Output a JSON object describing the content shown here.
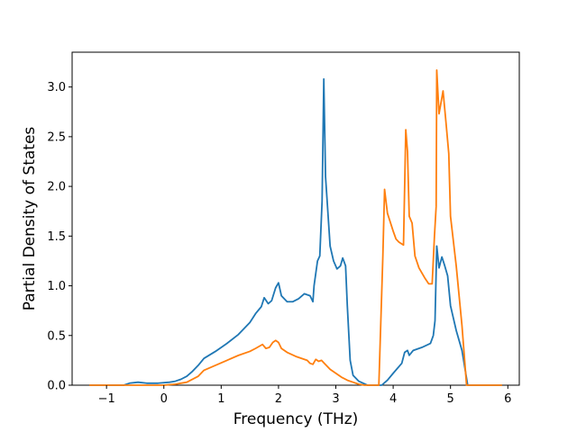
{
  "chart_data": {
    "type": "line",
    "xlabel": "Frequency (THz)",
    "ylabel": "Partial Density of States",
    "xlim": [
      -1.6,
      6.2
    ],
    "ylim": [
      0.0,
      3.35
    ],
    "xticks": [
      -1,
      0,
      1,
      2,
      3,
      4,
      5,
      6
    ],
    "xtick_labels": [
      "−1",
      "0",
      "1",
      "2",
      "3",
      "4",
      "5",
      "6"
    ],
    "yticks": [
      0.0,
      0.5,
      1.0,
      1.5,
      2.0,
      2.5,
      3.0
    ],
    "ytick_labels": [
      "0.0",
      "0.5",
      "1.0",
      "1.5",
      "2.0",
      "2.5",
      "3.0"
    ],
    "grid": false,
    "legend": "none",
    "series": [
      {
        "color": "#1f77b4",
        "points": [
          [
            -1.3,
            0.0
          ],
          [
            -0.7,
            0.0
          ],
          [
            -0.6,
            0.02
          ],
          [
            -0.45,
            0.03
          ],
          [
            -0.3,
            0.02
          ],
          [
            -0.1,
            0.02
          ],
          [
            0.1,
            0.03
          ],
          [
            0.2,
            0.04
          ],
          [
            0.3,
            0.06
          ],
          [
            0.4,
            0.09
          ],
          [
            0.5,
            0.14
          ],
          [
            0.6,
            0.2
          ],
          [
            0.7,
            0.27
          ],
          [
            0.9,
            0.34
          ],
          [
            1.1,
            0.42
          ],
          [
            1.3,
            0.51
          ],
          [
            1.5,
            0.63
          ],
          [
            1.6,
            0.72
          ],
          [
            1.7,
            0.79
          ],
          [
            1.75,
            0.88
          ],
          [
            1.82,
            0.82
          ],
          [
            1.88,
            0.85
          ],
          [
            1.95,
            0.98
          ],
          [
            2.0,
            1.03
          ],
          [
            2.05,
            0.9
          ],
          [
            2.15,
            0.84
          ],
          [
            2.25,
            0.84
          ],
          [
            2.35,
            0.87
          ],
          [
            2.45,
            0.92
          ],
          [
            2.55,
            0.9
          ],
          [
            2.6,
            0.84
          ],
          [
            2.62,
            1.0
          ],
          [
            2.68,
            1.25
          ],
          [
            2.72,
            1.3
          ],
          [
            2.76,
            1.85
          ],
          [
            2.79,
            3.08
          ],
          [
            2.82,
            2.1
          ],
          [
            2.9,
            1.4
          ],
          [
            2.96,
            1.25
          ],
          [
            3.02,
            1.17
          ],
          [
            3.08,
            1.2
          ],
          [
            3.12,
            1.28
          ],
          [
            3.17,
            1.2
          ],
          [
            3.2,
            0.8
          ],
          [
            3.25,
            0.25
          ],
          [
            3.3,
            0.1
          ],
          [
            3.4,
            0.04
          ],
          [
            3.55,
            0.0
          ],
          [
            3.8,
            0.0
          ],
          [
            3.9,
            0.05
          ],
          [
            4.0,
            0.12
          ],
          [
            4.15,
            0.22
          ],
          [
            4.2,
            0.33
          ],
          [
            4.25,
            0.35
          ],
          [
            4.28,
            0.3
          ],
          [
            4.35,
            0.35
          ],
          [
            4.5,
            0.38
          ],
          [
            4.65,
            0.42
          ],
          [
            4.7,
            0.5
          ],
          [
            4.73,
            0.65
          ],
          [
            4.76,
            1.4
          ],
          [
            4.8,
            1.18
          ],
          [
            4.85,
            1.29
          ],
          [
            4.9,
            1.2
          ],
          [
            4.95,
            1.1
          ],
          [
            5.0,
            0.8
          ],
          [
            5.1,
            0.55
          ],
          [
            5.2,
            0.35
          ],
          [
            5.3,
            0.0
          ],
          [
            5.9,
            0.0
          ]
        ]
      },
      {
        "color": "#ff7f0e",
        "points": [
          [
            -1.3,
            0.0
          ],
          [
            0.0,
            0.0
          ],
          [
            0.2,
            0.01
          ],
          [
            0.4,
            0.03
          ],
          [
            0.6,
            0.09
          ],
          [
            0.7,
            0.15
          ],
          [
            0.9,
            0.2
          ],
          [
            1.1,
            0.25
          ],
          [
            1.3,
            0.3
          ],
          [
            1.5,
            0.34
          ],
          [
            1.6,
            0.37
          ],
          [
            1.72,
            0.41
          ],
          [
            1.78,
            0.37
          ],
          [
            1.84,
            0.38
          ],
          [
            1.9,
            0.43
          ],
          [
            1.95,
            0.45
          ],
          [
            2.0,
            0.43
          ],
          [
            2.05,
            0.37
          ],
          [
            2.15,
            0.33
          ],
          [
            2.3,
            0.29
          ],
          [
            2.5,
            0.25
          ],
          [
            2.55,
            0.22
          ],
          [
            2.6,
            0.21
          ],
          [
            2.65,
            0.26
          ],
          [
            2.7,
            0.24
          ],
          [
            2.75,
            0.25
          ],
          [
            2.8,
            0.22
          ],
          [
            2.9,
            0.16
          ],
          [
            3.0,
            0.12
          ],
          [
            3.1,
            0.08
          ],
          [
            3.2,
            0.05
          ],
          [
            3.3,
            0.03
          ],
          [
            3.4,
            0.01
          ],
          [
            3.5,
            0.0
          ],
          [
            3.75,
            0.0
          ],
          [
            3.82,
            1.3
          ],
          [
            3.85,
            1.97
          ],
          [
            3.9,
            1.73
          ],
          [
            4.0,
            1.55
          ],
          [
            4.05,
            1.47
          ],
          [
            4.1,
            1.44
          ],
          [
            4.18,
            1.41
          ],
          [
            4.22,
            2.57
          ],
          [
            4.25,
            2.35
          ],
          [
            4.28,
            1.7
          ],
          [
            4.33,
            1.63
          ],
          [
            4.38,
            1.3
          ],
          [
            4.45,
            1.18
          ],
          [
            4.55,
            1.08
          ],
          [
            4.62,
            1.02
          ],
          [
            4.68,
            1.02
          ],
          [
            4.72,
            1.5
          ],
          [
            4.75,
            1.8
          ],
          [
            4.76,
            3.17
          ],
          [
            4.8,
            2.73
          ],
          [
            4.87,
            2.96
          ],
          [
            4.92,
            2.65
          ],
          [
            4.97,
            2.33
          ],
          [
            5.0,
            1.7
          ],
          [
            5.1,
            1.2
          ],
          [
            5.2,
            0.6
          ],
          [
            5.28,
            0.0
          ],
          [
            5.9,
            0.0
          ]
        ]
      }
    ]
  }
}
